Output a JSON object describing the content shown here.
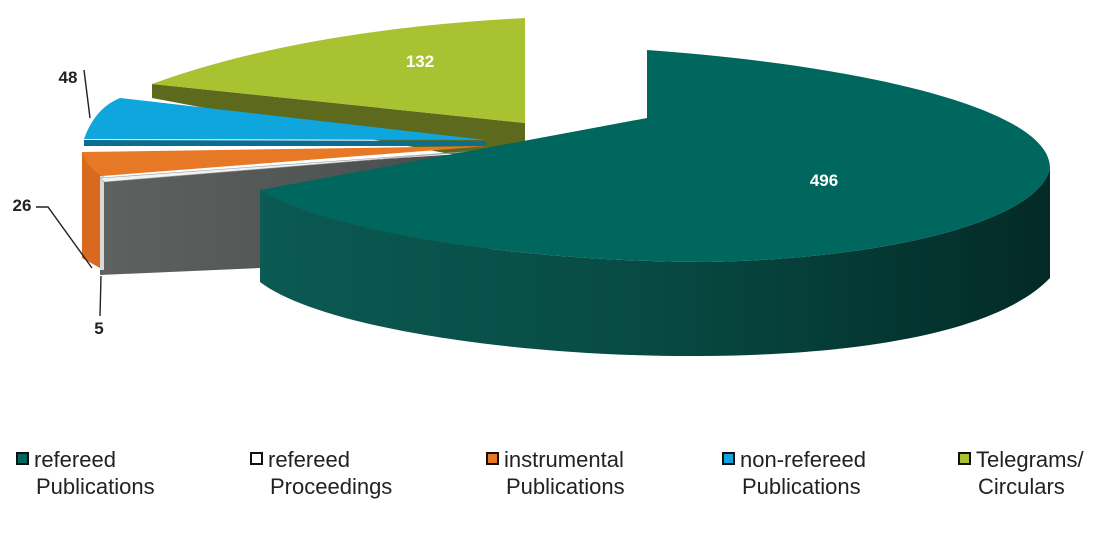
{
  "chart_data": {
    "type": "pie",
    "slices": [
      {
        "label": "refereed Publications",
        "value": 496,
        "color": "#00675f",
        "value_label": "496"
      },
      {
        "label": "refereed Proceedings",
        "value": 5,
        "color": "#ffffff",
        "value_label": "5"
      },
      {
        "label": "instrumental Publications",
        "value": 26,
        "color": "#e77825",
        "value_label": "26"
      },
      {
        "label": "non-refereed Publications",
        "value": 48,
        "color": "#0ea6dc",
        "value_label": "48"
      },
      {
        "label": "Telegrams/ Circulars",
        "value": 132,
        "color": "#a9c231",
        "value_label": "132"
      }
    ],
    "legend_position": "bottom",
    "style": "3d-exploded"
  },
  "legend": [
    {
      "line1": "refereed",
      "line2": "Publications",
      "color": "#00675f"
    },
    {
      "line1": "refereed",
      "line2": "Proceedings",
      "color": "#ffffff"
    },
    {
      "line1": "instrumental",
      "line2": "Publications",
      "color": "#e77825"
    },
    {
      "line1": "non-refereed",
      "line2": "Publications",
      "color": "#0ea6dc"
    },
    {
      "line1": "Telegrams/",
      "line2": "Circulars",
      "color": "#a9c231"
    }
  ]
}
